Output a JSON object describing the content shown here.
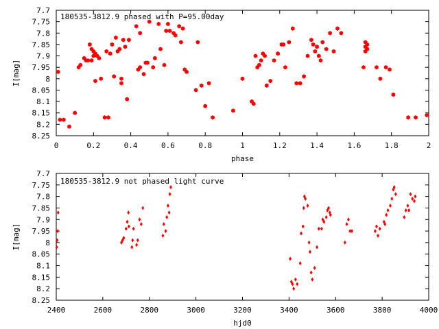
{
  "chart_data": [
    {
      "type": "scatter",
      "title": "180535-3812.9 phased with P=95.00day",
      "xlabel": "phase",
      "ylabel": "I[mag]",
      "xlim": [
        0,
        2
      ],
      "ylim": [
        8.25,
        7.7
      ],
      "y_inverted": true,
      "xticks": [
        "0",
        "0.2",
        "0.4",
        "0.6",
        "0.8",
        "1",
        "1.2",
        "1.4",
        "1.6",
        "1.8",
        "2"
      ],
      "yticks": [
        "7.7",
        "7.75",
        "7.8",
        "7.85",
        "7.9",
        "7.95",
        "8",
        "8.05",
        "8.1",
        "8.15",
        "8.2",
        "8.25"
      ],
      "grid": false,
      "color": "#ff0000",
      "series": [
        {
          "x": [
            0.01,
            0.02,
            0.04,
            0.07,
            0.1,
            0.12,
            0.13,
            0.15,
            0.16,
            0.17,
            0.18,
            0.19,
            0.19,
            0.2,
            0.2,
            0.21,
            0.21,
            0.22,
            0.23,
            0.24,
            0.26,
            0.27,
            0.28,
            0.29,
            0.3,
            0.31,
            0.32,
            0.33,
            0.34,
            0.35,
            0.35,
            0.36,
            0.37,
            0.38,
            0.39,
            0.43,
            0.44,
            0.45,
            0.45,
            0.47,
            0.48,
            0.49,
            0.5,
            0.52,
            0.53,
            0.55,
            0.56,
            0.58,
            0.59,
            0.6,
            0.61,
            0.63,
            0.64,
            0.66,
            0.67,
            0.68,
            0.69,
            0.7,
            0.75,
            0.76,
            0.78,
            0.8,
            0.82,
            0.84,
            0.95,
            1.0,
            1.05,
            1.06,
            1.07,
            1.08,
            1.09,
            1.1,
            1.11,
            1.12,
            1.13,
            1.15,
            1.17,
            1.19,
            1.21,
            1.22,
            1.23,
            1.25,
            1.27,
            1.29,
            1.31,
            1.33,
            1.35,
            1.37,
            1.38,
            1.39,
            1.4,
            1.41,
            1.42,
            1.43,
            1.45,
            1.47,
            1.49,
            1.51,
            1.53,
            1.65,
            1.66,
            1.66,
            1.66,
            1.67,
            1.67,
            1.72,
            1.74,
            1.77,
            1.79,
            1.81,
            1.89,
            1.93,
            1.99
          ],
          "y": [
            7.97,
            8.18,
            8.18,
            8.21,
            8.15,
            7.95,
            7.94,
            7.91,
            7.92,
            7.92,
            7.85,
            7.92,
            7.87,
            7.9,
            7.88,
            8.01,
            7.89,
            7.9,
            7.91,
            8.0,
            8.17,
            7.88,
            8.17,
            7.89,
            7.85,
            7.99,
            7.82,
            7.88,
            7.87,
            8.02,
            8.0,
            7.83,
            7.86,
            8.09,
            7.83,
            7.77,
            7.96,
            7.95,
            7.8,
            7.98,
            7.93,
            7.93,
            7.75,
            7.95,
            7.91,
            7.76,
            7.87,
            7.94,
            7.79,
            7.76,
            7.79,
            7.8,
            7.81,
            7.77,
            7.84,
            7.78,
            7.96,
            7.97,
            8.05,
            7.84,
            8.03,
            8.12,
            8.02,
            8.17,
            8.14,
            8.0,
            8.1,
            8.11,
            7.9,
            7.95,
            7.94,
            7.92,
            7.89,
            7.9,
            8.03,
            8.01,
            7.92,
            7.89,
            7.85,
            7.85,
            7.95,
            7.84,
            7.78,
            8.02,
            8.02,
            7.99,
            7.9,
            7.83,
            7.85,
            7.88,
            7.86,
            7.9,
            7.92,
            7.84,
            7.87,
            7.8,
            7.88,
            7.78,
            7.8,
            7.95,
            7.84,
            7.86,
            7.88,
            7.85,
            7.87,
            7.95,
            8.0,
            7.95,
            7.96,
            8.07,
            8.17,
            8.17,
            8.16
          ]
        }
      ]
    },
    {
      "type": "scatter",
      "title": "180535-3812.9 not phased light curve",
      "xlabel": "hjd0",
      "ylabel": "I[mag]",
      "xlim": [
        2400,
        4000
      ],
      "ylim": [
        8.25,
        7.7
      ],
      "y_inverted": true,
      "xticks": [
        "2400",
        "2600",
        "2800",
        "3000",
        "3200",
        "3400",
        "3600",
        "3800",
        "4000"
      ],
      "yticks": [
        "7.7",
        "7.75",
        "7.8",
        "7.85",
        "7.9",
        "7.95",
        "8",
        "8.05",
        "8.1",
        "8.15",
        "8.2",
        "8.25"
      ],
      "grid": false,
      "color": "#ff0000",
      "series": [
        {
          "x": [
            2402,
            2404,
            2406,
            2408,
            2680,
            2685,
            2690,
            2700,
            2705,
            2710,
            2712,
            2725,
            2728,
            2732,
            2745,
            2750,
            2758,
            2765,
            2772,
            2858,
            2862,
            2870,
            2875,
            2880,
            2885,
            2888,
            2892,
            3405,
            3410,
            3415,
            3420,
            3428,
            3435,
            3448,
            3452,
            3460,
            3463,
            3466,
            3470,
            3480,
            3486,
            3490,
            3495,
            3500,
            3510,
            3520,
            3528,
            3540,
            3545,
            3550,
            3560,
            3565,
            3570,
            3575,
            3578,
            3640,
            3648,
            3655,
            3662,
            3670,
            3770,
            3776,
            3782,
            3790,
            3808,
            3812,
            3818,
            3825,
            3835,
            3842,
            3848,
            3852,
            3858,
            3895,
            3902,
            3910,
            3915,
            3922,
            3930,
            3938,
            3942
          ],
          "y": [
            8.02,
            7.99,
            7.95,
            7.87,
            8.0,
            7.99,
            7.98,
            7.94,
            7.91,
            7.87,
            7.93,
            8.02,
            7.99,
            7.94,
            8.01,
            7.99,
            7.9,
            7.92,
            7.85,
            7.97,
            7.92,
            7.95,
            7.89,
            7.84,
            7.87,
            7.79,
            7.76,
            8.07,
            8.17,
            8.18,
            8.2,
            8.16,
            8.18,
            8.09,
            7.96,
            7.93,
            7.85,
            7.8,
            7.81,
            7.84,
            8.0,
            8.04,
            8.13,
            8.16,
            8.11,
            8.02,
            7.94,
            7.94,
            7.9,
            7.91,
            7.89,
            7.86,
            7.85,
            7.87,
            7.88,
            8.0,
            7.92,
            7.9,
            7.95,
            7.95,
            7.95,
            7.93,
            7.97,
            7.94,
            7.91,
            7.92,
            7.88,
            7.86,
            7.84,
            7.81,
            7.77,
            7.76,
            7.79,
            7.89,
            7.86,
            7.84,
            7.86,
            7.79,
            7.81,
            7.82,
            7.8
          ]
        }
      ]
    }
  ]
}
